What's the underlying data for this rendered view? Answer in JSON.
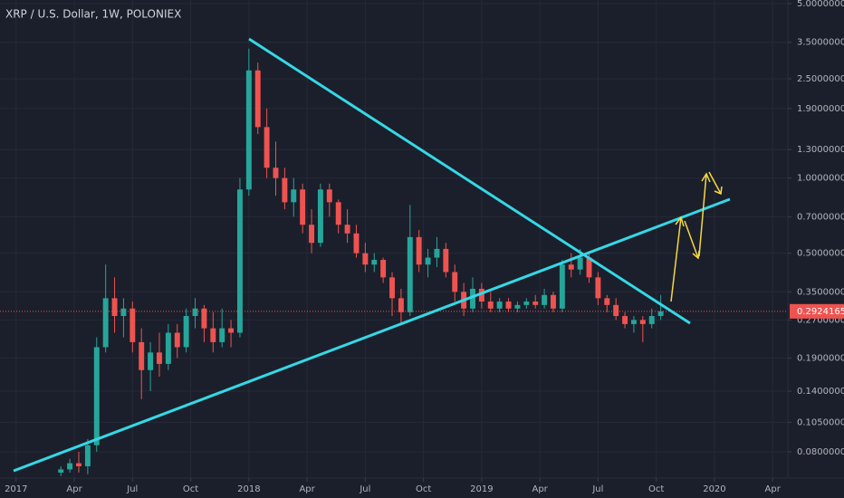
{
  "chart_data": {
    "type": "candlestick",
    "title": "XRP / U.S. Dollar, 1W, POLONIEX",
    "open": [
      0.066,
      0.068,
      0.072,
      0.07,
      0.085,
      0.21,
      0.33,
      0.28,
      0.3,
      0.22,
      0.17,
      0.2,
      0.18,
      0.24,
      0.21,
      0.28,
      0.3,
      0.25,
      0.22,
      0.25,
      0.24,
      0.9,
      2.7,
      1.6,
      1.1,
      1.0,
      0.8,
      0.9,
      0.65,
      0.55,
      0.9,
      0.8,
      0.65,
      0.6,
      0.5,
      0.45,
      0.47,
      0.4,
      0.33,
      0.29,
      0.58,
      0.45,
      0.48,
      0.52,
      0.42,
      0.35,
      0.3,
      0.36,
      0.32,
      0.3,
      0.32,
      0.3,
      0.31,
      0.32,
      0.31,
      0.34,
      0.3,
      0.45,
      0.43,
      0.48,
      0.4,
      0.33,
      0.31,
      0.28,
      0.26,
      0.27,
      0.26,
      0.28
    ],
    "high": [
      0.07,
      0.075,
      0.08,
      0.09,
      0.23,
      0.45,
      0.4,
      0.33,
      0.32,
      0.25,
      0.22,
      0.24,
      0.26,
      0.26,
      0.3,
      0.33,
      0.31,
      0.29,
      0.3,
      0.27,
      1.0,
      3.3,
      2.9,
      1.9,
      1.4,
      1.1,
      1.0,
      0.95,
      0.75,
      0.95,
      0.95,
      0.82,
      0.75,
      0.65,
      0.55,
      0.5,
      0.48,
      0.42,
      0.36,
      0.78,
      0.62,
      0.52,
      0.58,
      0.55,
      0.45,
      0.38,
      0.4,
      0.38,
      0.35,
      0.33,
      0.33,
      0.32,
      0.33,
      0.34,
      0.36,
      0.35,
      0.47,
      0.5,
      0.52,
      0.5,
      0.42,
      0.34,
      0.33,
      0.29,
      0.28,
      0.28,
      0.3,
      0.34
    ],
    "low": [
      0.064,
      0.066,
      0.066,
      0.065,
      0.08,
      0.2,
      0.24,
      0.23,
      0.2,
      0.13,
      0.14,
      0.16,
      0.17,
      0.19,
      0.2,
      0.25,
      0.22,
      0.2,
      0.21,
      0.21,
      0.23,
      0.85,
      1.5,
      1.0,
      0.85,
      0.75,
      0.7,
      0.6,
      0.5,
      0.53,
      0.7,
      0.6,
      0.55,
      0.48,
      0.42,
      0.42,
      0.38,
      0.28,
      0.26,
      0.28,
      0.42,
      0.4,
      0.44,
      0.4,
      0.32,
      0.28,
      0.29,
      0.3,
      0.29,
      0.29,
      0.29,
      0.29,
      0.3,
      0.3,
      0.3,
      0.29,
      0.29,
      0.4,
      0.41,
      0.38,
      0.31,
      0.29,
      0.27,
      0.25,
      0.24,
      0.22,
      0.25,
      0.27
    ],
    "close": [
      0.068,
      0.072,
      0.07,
      0.085,
      0.21,
      0.33,
      0.28,
      0.3,
      0.22,
      0.17,
      0.2,
      0.18,
      0.24,
      0.21,
      0.28,
      0.3,
      0.25,
      0.22,
      0.25,
      0.24,
      0.9,
      2.7,
      1.6,
      1.1,
      1.0,
      0.8,
      0.9,
      0.65,
      0.55,
      0.9,
      0.8,
      0.65,
      0.6,
      0.5,
      0.45,
      0.47,
      0.4,
      0.33,
      0.29,
      0.58,
      0.45,
      0.48,
      0.52,
      0.42,
      0.35,
      0.3,
      0.36,
      0.32,
      0.3,
      0.32,
      0.3,
      0.31,
      0.32,
      0.31,
      0.34,
      0.3,
      0.45,
      0.43,
      0.48,
      0.4,
      0.33,
      0.31,
      0.28,
      0.26,
      0.27,
      0.26,
      0.28,
      0.29241654
    ],
    "up_color": "#26a69a",
    "down_color": "#ef5350",
    "log_scale": true,
    "grid": true,
    "ylim": [
      0.066,
      5.17
    ],
    "yticks": [
      {
        "value": 5,
        "label": "5.00000000"
      },
      {
        "value": 3.5,
        "label": "3.50000000"
      },
      {
        "value": 2.5,
        "label": "2.50000000"
      },
      {
        "value": 1.9,
        "label": "1.90000000"
      },
      {
        "value": 1.3,
        "label": "1.30000000"
      },
      {
        "value": 1,
        "label": "1.00000000"
      },
      {
        "value": 0.7,
        "label": "0.70000000"
      },
      {
        "value": 0.5,
        "label": "0.50000000"
      },
      {
        "value": 0.35,
        "label": "0.35000000"
      },
      {
        "value": 0.27,
        "label": "0.27000000"
      },
      {
        "value": 0.19,
        "label": "0.19000000"
      },
      {
        "value": 0.14,
        "label": "0.14000000"
      },
      {
        "value": 0.105,
        "label": "0.10500000"
      },
      {
        "value": 0.08,
        "label": "0.08000000"
      }
    ],
    "xlim": [
      -6.8,
      81.2
    ],
    "xticks": [
      {
        "value": -5,
        "label": "2017"
      },
      {
        "value": 1.5,
        "label": "Apr"
      },
      {
        "value": 8,
        "label": "Jul"
      },
      {
        "value": 14.5,
        "label": "Oct"
      },
      {
        "value": 21,
        "label": "2018"
      },
      {
        "value": 27.5,
        "label": "Apr"
      },
      {
        "value": 34,
        "label": "Jul"
      },
      {
        "value": 40.5,
        "label": "Oct"
      },
      {
        "value": 47,
        "label": "2019"
      },
      {
        "value": 53.5,
        "label": "Apr"
      },
      {
        "value": 60,
        "label": "Jul"
      },
      {
        "value": 66.5,
        "label": "Oct"
      },
      {
        "value": 73,
        "label": "2020"
      },
      {
        "value": 79.5,
        "label": "Apr"
      }
    ],
    "last_price": {
      "value": 0.29241654,
      "label": "0.29241654"
    }
  }
}
